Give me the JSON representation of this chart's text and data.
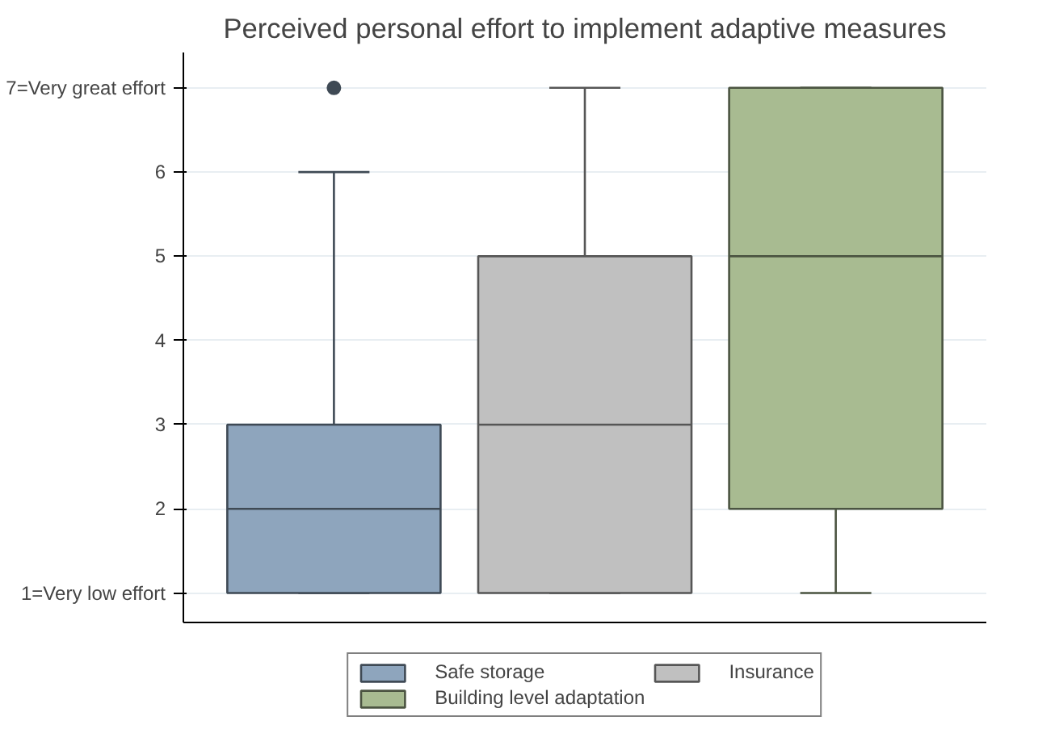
{
  "chart_data": {
    "type": "box",
    "title": "Perceived personal effort to implement adaptive measures",
    "categories": [
      null,
      null,
      null
    ],
    "ylim": [
      0.65,
      7.42
    ],
    "yticks": [
      {
        "value": 1,
        "label": "1=Very low effort"
      },
      2,
      3,
      4,
      5,
      6,
      {
        "value": 7,
        "label": "7=Very great effort"
      }
    ],
    "grid": "y",
    "legend": "bottom",
    "tick_labels": "y",
    "series": [
      {
        "name": "Safe storage",
        "color": "#8ea5bd",
        "boxes": [
          {
            "low": 1,
            "q1": 1,
            "median": 2,
            "q3": 3,
            "high": 6,
            "outliers": [
              7
            ]
          },
          null,
          null
        ]
      },
      {
        "name": "Insurance",
        "color": "#c0c0c0",
        "boxes": [
          null,
          {
            "low": 1,
            "q1": 1,
            "median": 3,
            "q3": 5,
            "high": 7
          },
          null
        ]
      },
      {
        "name": "Building level adaptation",
        "color": "#a8bb91",
        "boxes": [
          null,
          null,
          {
            "low": 1,
            "q1": 2,
            "median": 5,
            "q3": 7,
            "high": 7
          }
        ]
      }
    ]
  }
}
